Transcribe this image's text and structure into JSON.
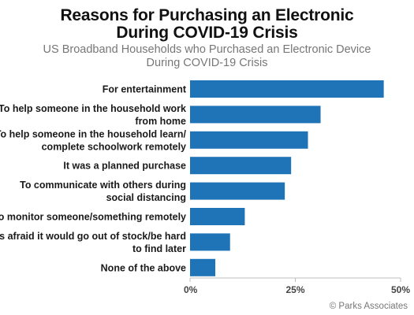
{
  "chart_data": {
    "type": "bar",
    "orientation": "horizontal",
    "title_lines": [
      "Reasons for Purchasing an Electronic",
      "During COVID-19 Crisis"
    ],
    "subtitle_lines": [
      "US Broadband Households who Purchased an Electronic Device",
      "During COVID-19 Crisis"
    ],
    "categories": [
      [
        "For entertainment"
      ],
      [
        "To help someone in the household work",
        "from home"
      ],
      [
        "To help someone in the household learn/",
        "complete schoolwork remotely"
      ],
      [
        "It was a planned purchase"
      ],
      [
        "To communicate with others during",
        "social distancing"
      ],
      [
        "To monitor someone/something remotely"
      ],
      [
        "Was afraid it would go out of stock/be hard",
        "to find later"
      ],
      [
        "None of the above"
      ]
    ],
    "values": [
      46,
      31,
      28,
      24,
      22.5,
      13,
      9.5,
      6
    ],
    "xlim": [
      0,
      50
    ],
    "xticks": [
      0,
      25,
      50
    ],
    "xtick_labels": [
      "0%",
      "25%",
      "50%"
    ],
    "grid": false,
    "bar_color": "#1f73b7",
    "source": "© Parks Associates"
  }
}
